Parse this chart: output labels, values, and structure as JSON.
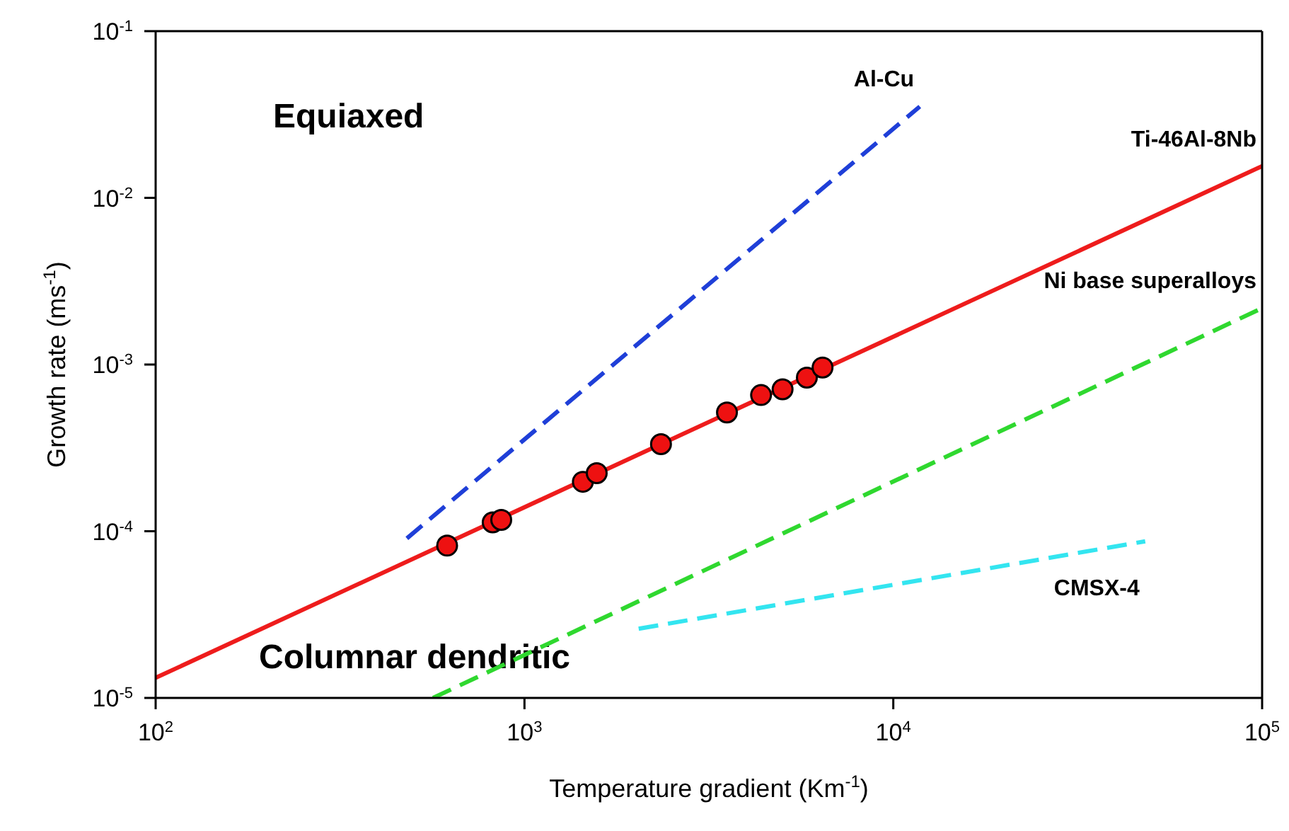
{
  "chart_data": {
    "type": "line",
    "xlabel": "Temperature gradient (Km$^{-1}$)",
    "ylabel": "Growth rate (ms$^{-1}$)",
    "log": "xy",
    "grid": false,
    "legend": false,
    "xlim": [
      100,
      100000
    ],
    "ylim": [
      1e-05,
      0.1
    ],
    "xticks": [
      {
        "value": 100,
        "label": "10$^{2}$"
      },
      {
        "value": 1000,
        "label": "10$^{3}$"
      },
      {
        "value": 10000,
        "label": "10$^{4}$"
      },
      {
        "value": 100000,
        "label": "10$^{5}$"
      }
    ],
    "yticks": [
      {
        "value": 1e-05,
        "label": "10$^{-5}$"
      },
      {
        "value": 0.0001,
        "label": "10$^{-4}$"
      },
      {
        "value": 0.001,
        "label": "10$^{-3}$"
      },
      {
        "value": 0.01,
        "label": "10$^{-2}$"
      },
      {
        "value": 0.1,
        "label": "10$^{-1}$"
      }
    ],
    "annotations": [
      "Equiaxed",
      "Columnar dendritic"
    ],
    "series": [
      {
        "name": "Al-Cu",
        "line_style": "dashed",
        "color": "#1f3fd8",
        "x": [
          480,
          11800
        ],
        "values": [
          9.06e-05,
          0.0353
        ]
      },
      {
        "name": "Ti-46Al-8Nb",
        "line_style": "solid",
        "color": "#ee1c1c",
        "x": [
          100,
          100000
        ],
        "values": [
          1.32e-05,
          0.0155
        ]
      },
      {
        "name": "Ni base superalloys",
        "line_style": "dashed",
        "color": "#2fd82f",
        "x": [
          565,
          100000
        ],
        "values": [
          1e-05,
          0.00218
        ]
      },
      {
        "name": "CMSX-4",
        "line_style": "dashed",
        "color": "#33e5f0",
        "x": [
          2040,
          48200
        ],
        "values": [
          2.6e-05,
          8.7e-05
        ]
      },
      {
        "type": "scatter",
        "marker": "circle",
        "color": "#ee1111",
        "x": [
          617,
          820,
          865,
          1440,
          1570,
          2345,
          3540,
          4380,
          5010,
          5830,
          6430
        ],
        "values": [
          8.2e-05,
          0.000113,
          0.000117,
          0.000198,
          0.000223,
          0.000333,
          0.000516,
          0.000656,
          0.00071,
          0.000835,
          0.00096
        ]
      }
    ]
  }
}
